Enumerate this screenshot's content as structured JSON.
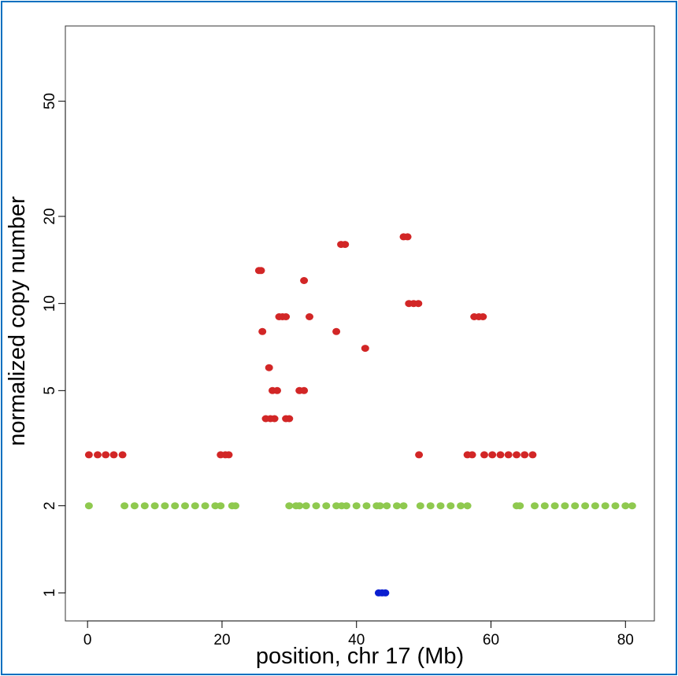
{
  "chart_data": {
    "type": "scatter",
    "title": "",
    "xlabel": "position, chr 17 (Mb)",
    "ylabel": "normalized copy number",
    "x_ticks": [
      0,
      20,
      40,
      60,
      80
    ],
    "y_ticks": [
      1,
      2,
      5,
      10,
      20,
      50
    ],
    "xlim": [
      -3.3,
      84.3
    ],
    "ylim": [
      0.8,
      91
    ],
    "y_scale": "log",
    "grid": false,
    "series": [
      {
        "color": "#8fc94f",
        "points": [
          [
            0.2,
            2
          ],
          [
            5.5,
            2
          ],
          [
            7,
            2
          ],
          [
            8.5,
            2
          ],
          [
            10,
            2
          ],
          [
            11.5,
            2
          ],
          [
            13,
            2
          ],
          [
            14.5,
            2
          ],
          [
            16,
            2
          ],
          [
            17.5,
            2
          ],
          [
            19,
            2
          ],
          [
            19.8,
            2
          ],
          [
            21.5,
            2
          ],
          [
            22,
            2
          ],
          [
            30,
            2
          ],
          [
            31,
            2
          ],
          [
            31.5,
            2
          ],
          [
            32.5,
            2
          ],
          [
            34,
            2
          ],
          [
            35.5,
            2
          ],
          [
            37,
            2
          ],
          [
            37.8,
            2
          ],
          [
            38.5,
            2
          ],
          [
            40,
            2
          ],
          [
            41.5,
            2
          ],
          [
            43,
            2
          ],
          [
            43.5,
            2
          ],
          [
            44.5,
            2
          ],
          [
            46,
            2
          ],
          [
            47,
            2
          ],
          [
            49.5,
            2
          ],
          [
            51,
            2
          ],
          [
            52.5,
            2
          ],
          [
            54,
            2
          ],
          [
            55.5,
            2
          ],
          [
            56.5,
            2
          ],
          [
            63.8,
            2
          ],
          [
            64.3,
            2
          ],
          [
            66.5,
            2
          ],
          [
            68,
            2
          ],
          [
            69.5,
            2
          ],
          [
            71,
            2
          ],
          [
            72.5,
            2
          ],
          [
            74,
            2
          ],
          [
            75.5,
            2
          ],
          [
            77,
            2
          ],
          [
            78.5,
            2
          ],
          [
            80,
            2
          ],
          [
            81,
            2
          ]
        ]
      },
      {
        "color": "#d22626",
        "points": [
          [
            0.2,
            3
          ],
          [
            1.5,
            3
          ],
          [
            2.7,
            3
          ],
          [
            3.9,
            3
          ],
          [
            5.2,
            3
          ],
          [
            19.8,
            3
          ],
          [
            20.5,
            3
          ],
          [
            21,
            3
          ],
          [
            25.5,
            13
          ],
          [
            25.8,
            13
          ],
          [
            26,
            8
          ],
          [
            26.5,
            4
          ],
          [
            27.2,
            4
          ],
          [
            27.8,
            4
          ],
          [
            27,
            6
          ],
          [
            27.5,
            5
          ],
          [
            28.2,
            5
          ],
          [
            28.5,
            9
          ],
          [
            29,
            9
          ],
          [
            29.5,
            9
          ],
          [
            29.5,
            4
          ],
          [
            30,
            4
          ],
          [
            31.5,
            5
          ],
          [
            32.2,
            5
          ],
          [
            32.2,
            12
          ],
          [
            33,
            9
          ],
          [
            37,
            8
          ],
          [
            37.7,
            16
          ],
          [
            38.3,
            16
          ],
          [
            41.3,
            7
          ],
          [
            47,
            17
          ],
          [
            47.6,
            17
          ],
          [
            47.8,
            10
          ],
          [
            48.5,
            10
          ],
          [
            49.2,
            10
          ],
          [
            49.3,
            3
          ],
          [
            56.5,
            3
          ],
          [
            57.2,
            3
          ],
          [
            57.5,
            9
          ],
          [
            58.2,
            9
          ],
          [
            58.8,
            9
          ],
          [
            59,
            3
          ],
          [
            60.2,
            3
          ],
          [
            61.4,
            3
          ],
          [
            62.6,
            3
          ],
          [
            63.8,
            3
          ],
          [
            65,
            3
          ],
          [
            66.2,
            3
          ]
        ]
      },
      {
        "color": "#0a1ed0",
        "points": [
          [
            43.3,
            1
          ],
          [
            43.8,
            1
          ],
          [
            44.3,
            1
          ]
        ]
      }
    ]
  }
}
